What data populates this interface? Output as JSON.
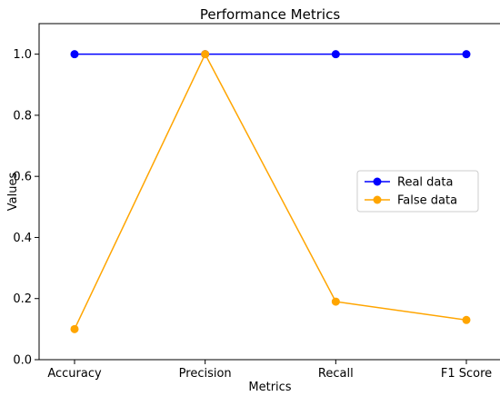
{
  "chart_data": {
    "type": "line",
    "title": "Performance Metrics",
    "xlabel": "Metrics",
    "ylabel": "Values",
    "categories": [
      "Accuracy",
      "Precision",
      "Recall",
      "F1 Score"
    ],
    "ylim": [
      0.0,
      1.1
    ],
    "yticks": [
      "0.0",
      "0.2",
      "0.4",
      "0.6",
      "0.8",
      "1.0"
    ],
    "grid": false,
    "legend_position": "center-right",
    "series": [
      {
        "name": "Real data",
        "color": "#0000ff",
        "values": [
          1.0,
          1.0,
          1.0,
          1.0
        ]
      },
      {
        "name": "False data",
        "color": "#ffa500",
        "values": [
          0.1,
          1.0,
          0.19,
          0.13
        ]
      }
    ]
  }
}
